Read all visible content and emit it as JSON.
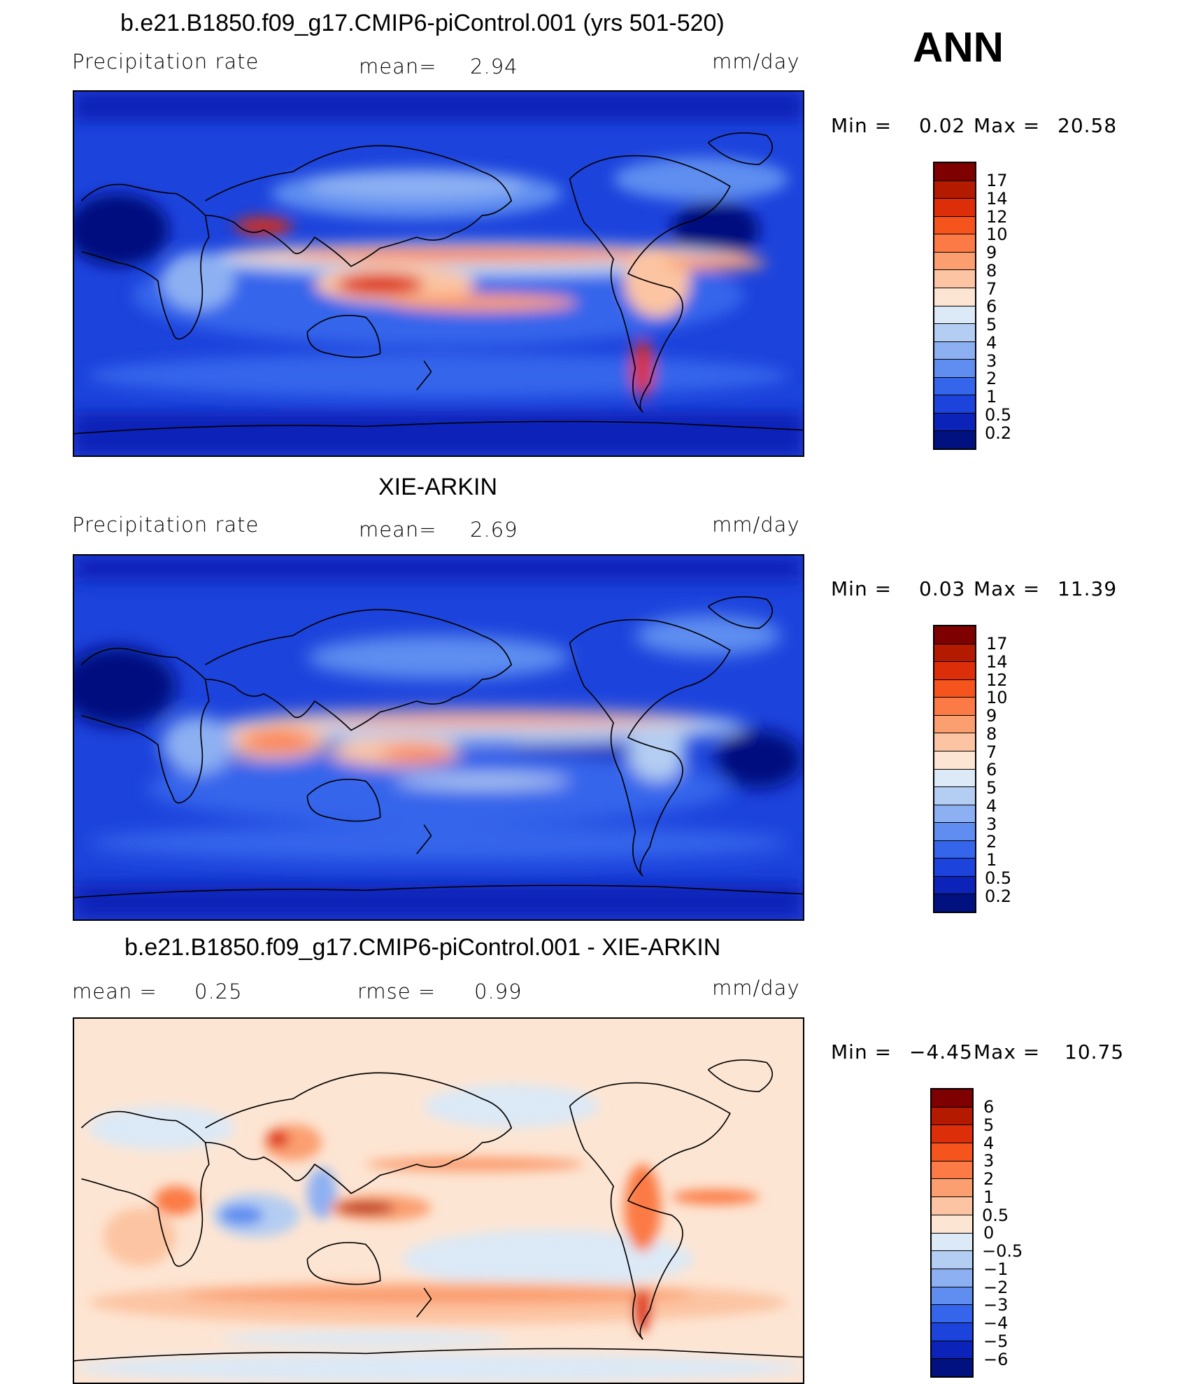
{
  "season": "ANN",
  "panel1": {
    "title": "b.e21.B1850.f09_g17.CMIP6-piControl.001 (yrs 501-520)",
    "variable": "Precipitation rate",
    "stat_label": "mean=",
    "stat_value": "2.94",
    "units": "mm/day",
    "min_label": "Min =",
    "min_value": "0.02",
    "max_label": "Max =",
    "max_value": "20.58"
  },
  "panel2": {
    "title": "XIE-ARKIN",
    "variable": "Precipitation rate",
    "stat_label": "mean=",
    "stat_value": "2.69",
    "units": "mm/day",
    "min_label": "Min =",
    "min_value": "0.03",
    "max_label": "Max =",
    "max_value": "11.39"
  },
  "panel3": {
    "title": "b.e21.B1850.f09_g17.CMIP6-piControl.001 - XIE-ARKIN",
    "mean_label": "mean =",
    "mean_value": "0.25",
    "rmse_label": "rmse =",
    "rmse_value": "0.99",
    "units": "mm/day",
    "min_label": "Min =",
    "min_value": "−4.45",
    "max_label": "Max =",
    "max_value": "10.75"
  },
  "precip_colorbar": {
    "labels": [
      "17",
      "14",
      "12",
      "10",
      "9",
      "8",
      "7",
      "6",
      "5",
      "4",
      "3",
      "2",
      "1",
      "0.5",
      "0.2"
    ],
    "colors": [
      "#7f0000",
      "#b31a00",
      "#dd2e0a",
      "#f5541c",
      "#fb7a45",
      "#fb9e70",
      "#fcc4a2",
      "#fde5d3",
      "#dce9f6",
      "#b4cdf2",
      "#8db0f3",
      "#5f8ef0",
      "#3565eb",
      "#1c43dc",
      "#0b23b8",
      "#01117f"
    ]
  },
  "diff_colorbar": {
    "labels": [
      "6",
      "5",
      "4",
      "3",
      "2",
      "1",
      "0.5",
      "0",
      "−0.5",
      "−1",
      "−2",
      "−3",
      "−4",
      "−5",
      "−6"
    ],
    "colors": [
      "#7f0000",
      "#b31a00",
      "#dd2e0a",
      "#f5541c",
      "#fb7a45",
      "#fb9e70",
      "#fcc4a2",
      "#fde5d3",
      "#dce9f6",
      "#b4cdf2",
      "#8db0f3",
      "#5f8ef0",
      "#3565eb",
      "#1c43dc",
      "#0b23b8",
      "#01117f"
    ]
  }
}
